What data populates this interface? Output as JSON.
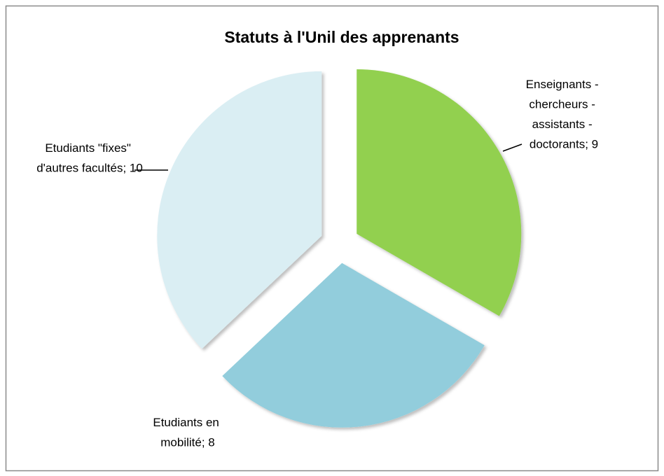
{
  "chart_data": {
    "type": "pie",
    "title": "Statuts à l'Unil des apprenants",
    "values": [
      9,
      8,
      10
    ],
    "value_labels": [
      "Enseignants - chercheurs - assistants - doctorants; 9",
      "Etudiants en mobilité; 8",
      "Etudiants \"fixes\" d'autres facultés; 10"
    ],
    "colors": [
      "#92d050",
      "#92cddc",
      "#daeef3"
    ]
  }
}
